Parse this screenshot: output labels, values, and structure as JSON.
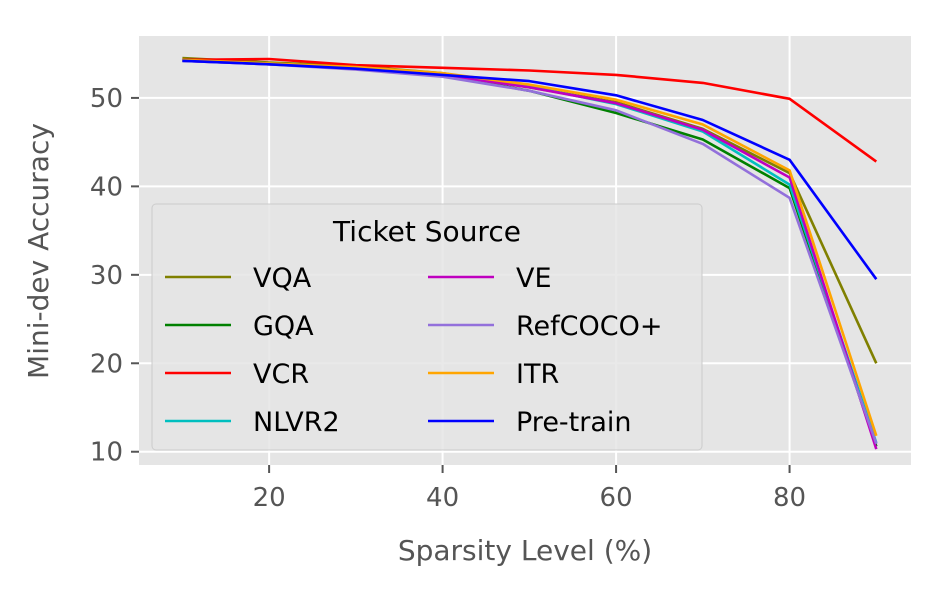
{
  "chart_data": {
    "type": "line",
    "xlabel": "Sparsity Level (%)",
    "ylabel": "Mini-dev Accuracy",
    "xlim": [
      5,
      94
    ],
    "ylim": [
      8.5,
      57
    ],
    "xticks": [
      20,
      40,
      60,
      80
    ],
    "yticks": [
      10,
      20,
      30,
      40,
      50
    ],
    "grid": true,
    "legend": {
      "title": "Ticket Source",
      "placement": "lower-left",
      "columns": 2
    },
    "x": [
      10,
      20,
      30,
      40,
      50,
      60,
      70,
      80,
      90
    ],
    "series": [
      {
        "name": "VQA",
        "color": "#808000",
        "values": [
          54.5,
          54.0,
          53.6,
          52.8,
          51.2,
          49.5,
          46.5,
          41.5,
          20.0
        ]
      },
      {
        "name": "GQA",
        "color": "#008000",
        "values": [
          54.3,
          53.9,
          53.5,
          52.6,
          50.8,
          48.3,
          45.3,
          39.8,
          10.6
        ]
      },
      {
        "name": "VCR",
        "color": "#ff0000",
        "values": [
          54.3,
          54.4,
          53.7,
          53.4,
          53.1,
          52.6,
          51.7,
          49.9,
          42.8
        ]
      },
      {
        "name": "NLVR2",
        "color": "#00bfbf",
        "values": [
          54.2,
          53.9,
          53.4,
          52.7,
          51.3,
          49.3,
          46.2,
          40.2,
          11.0
        ]
      },
      {
        "name": "VE",
        "color": "#bf00bf",
        "values": [
          54.2,
          53.8,
          53.4,
          52.6,
          51.2,
          49.4,
          46.4,
          41.0,
          10.3
        ]
      },
      {
        "name": "RefCOCO+",
        "color": "#9370db",
        "values": [
          54.2,
          53.8,
          53.2,
          52.4,
          50.8,
          48.6,
          44.8,
          38.7,
          10.9
        ]
      },
      {
        "name": "ITR",
        "color": "#ffa500",
        "values": [
          54.3,
          53.9,
          53.5,
          52.8,
          51.5,
          49.8,
          47.0,
          41.8,
          11.8
        ]
      },
      {
        "name": "Pre-train",
        "color": "#0000ff",
        "values": [
          54.2,
          53.8,
          53.3,
          52.6,
          51.9,
          50.3,
          47.5,
          43.0,
          29.5
        ]
      }
    ]
  }
}
